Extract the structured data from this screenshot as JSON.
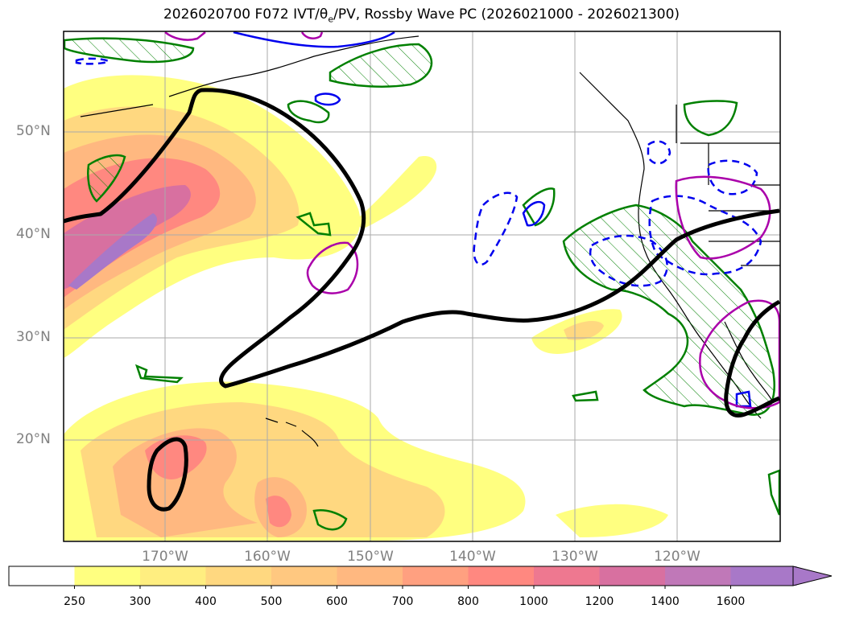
{
  "title": {
    "prefix": "2026020700 F072 IVT/θ",
    "sub": "e",
    "suffix": "/PV, Rossby Wave PC (2026021000 - 2026021300)"
  },
  "lat_labels": [
    "50°N",
    "40°N",
    "30°N",
    "20°N"
  ],
  "lon_labels": [
    "170°W",
    "160°W",
    "150°W",
    "140°W",
    "130°W",
    "120°W"
  ],
  "colorbar": {
    "ticks": [
      "250",
      "300",
      "400",
      "500",
      "600",
      "700",
      "800",
      "1000",
      "1200",
      "1400",
      "1600"
    ],
    "colors": [
      "#ffffff",
      "#ffff80",
      "#ffee80",
      "#ffd880",
      "#ffc880",
      "#ffb880",
      "#ffa080",
      "#ff8880",
      "#ee7890",
      "#d870a0",
      "#c078b8",
      "#a878c8"
    ]
  },
  "legend_colors": {
    "rossby_pc": "#000000",
    "pv_positive": "#0000ff",
    "pv_negative": "#0000ff",
    "theta_e": "#aa00aa",
    "hatch": "#008000"
  }
}
